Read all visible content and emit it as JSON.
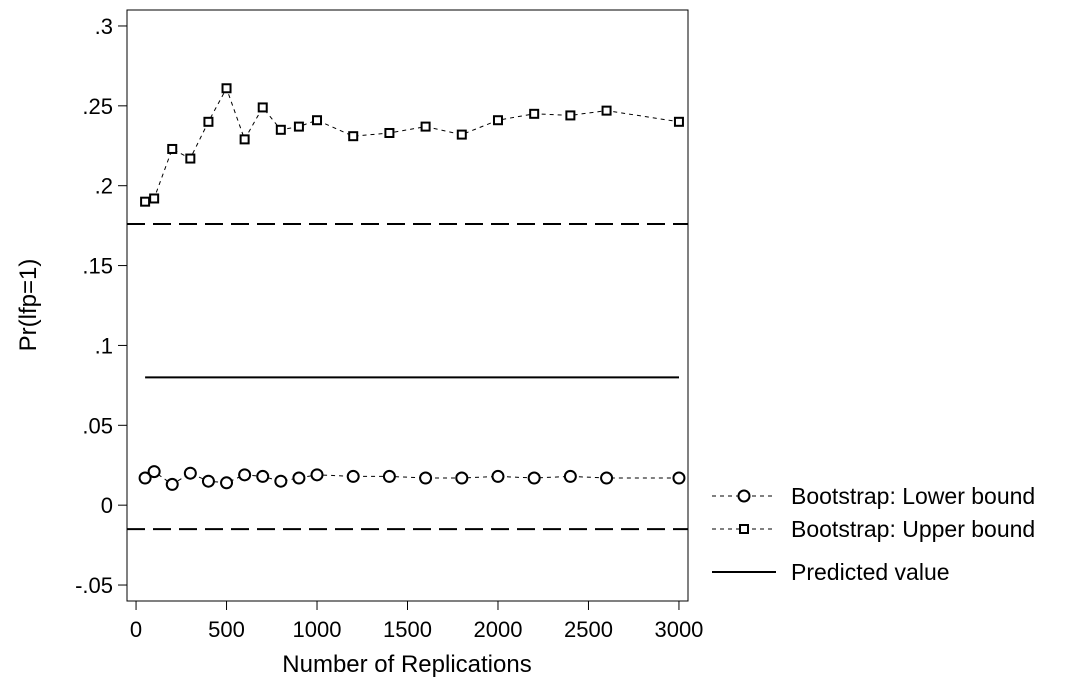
{
  "chart_data": {
    "type": "line",
    "xlabel": "Number of Replications",
    "ylabel": "Pr(lfp=1)",
    "xlim": [
      -50,
      3050
    ],
    "ylim": [
      -0.06,
      0.31
    ],
    "xticks": [
      0,
      500,
      1000,
      1500,
      2000,
      2500,
      3000
    ],
    "xtick_labels": [
      "0",
      "500",
      "1000",
      "1500",
      "2000",
      "2500",
      "3000"
    ],
    "yticks": [
      -0.05,
      0,
      0.05,
      0.1,
      0.15,
      0.2,
      0.25,
      0.3
    ],
    "ytick_labels": [
      "-.05",
      "0",
      ".05",
      ".1",
      ".15",
      ".2",
      ".25",
      ".3"
    ],
    "grid": false,
    "legend_position": "right",
    "reference_lines": [
      {
        "y": 0.176,
        "style": "long-dash"
      },
      {
        "y": -0.015,
        "style": "long-dash"
      }
    ],
    "x": [
      50,
      100,
      200,
      300,
      400,
      500,
      600,
      700,
      800,
      900,
      1000,
      1200,
      1400,
      1600,
      1800,
      2000,
      2200,
      2400,
      2600,
      3000
    ],
    "series": [
      {
        "name": "Bootstrap: Lower bound",
        "marker": "circle",
        "line": "short-dash",
        "values": [
          0.017,
          0.021,
          0.013,
          0.02,
          0.015,
          0.014,
          0.019,
          0.018,
          0.015,
          0.017,
          0.019,
          0.018,
          0.018,
          0.017,
          0.017,
          0.018,
          0.017,
          0.018,
          0.017,
          0.017
        ]
      },
      {
        "name": "Bootstrap: Upper bound",
        "marker": "square",
        "line": "short-dash",
        "values": [
          0.19,
          0.192,
          0.223,
          0.217,
          0.24,
          0.261,
          0.229,
          0.249,
          0.235,
          0.237,
          0.241,
          0.231,
          0.233,
          0.237,
          0.232,
          0.241,
          0.245,
          0.244,
          0.247,
          0.24
        ]
      },
      {
        "name": "Predicted value",
        "marker": "none",
        "line": "solid",
        "values": [
          0.08,
          0.08,
          0.08,
          0.08,
          0.08,
          0.08,
          0.08,
          0.08,
          0.08,
          0.08,
          0.08,
          0.08,
          0.08,
          0.08,
          0.08,
          0.08,
          0.08,
          0.08,
          0.08,
          0.08
        ]
      }
    ]
  }
}
